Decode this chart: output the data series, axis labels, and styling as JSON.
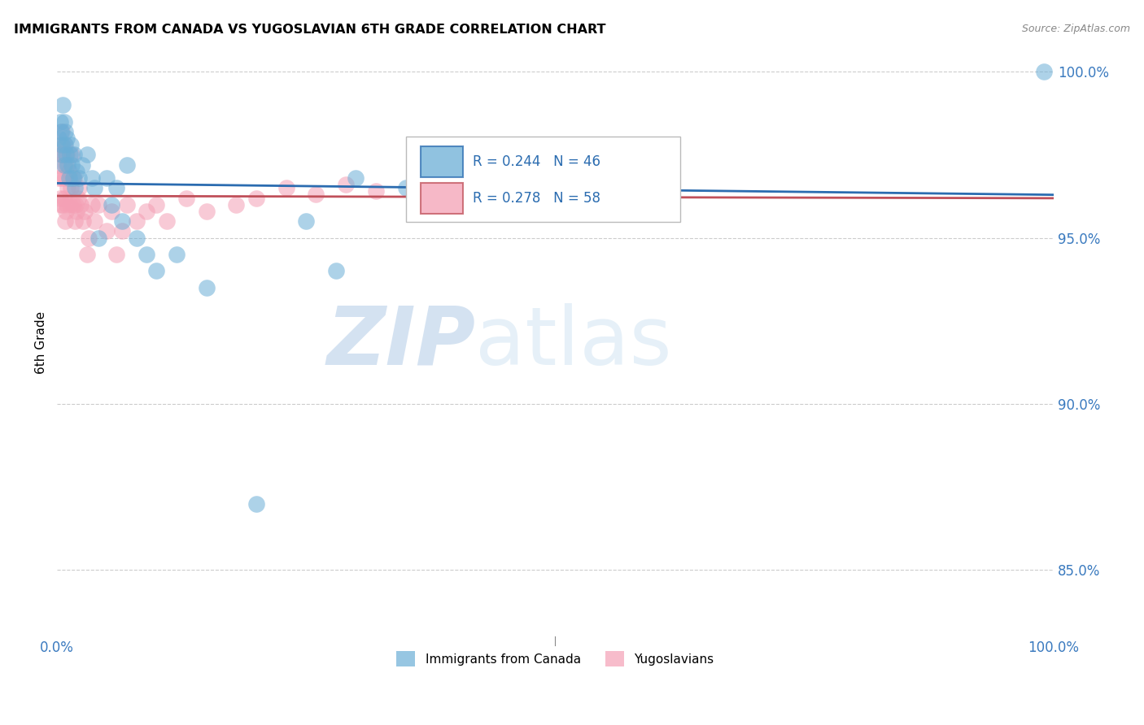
{
  "title": "IMMIGRANTS FROM CANADA VS YUGOSLAVIAN 6TH GRADE CORRELATION CHART",
  "source": "Source: ZipAtlas.com",
  "ylabel": "6th Grade",
  "ytick_labels": [
    "100.0%",
    "95.0%",
    "90.0%",
    "85.0%"
  ],
  "ytick_values": [
    1.0,
    0.95,
    0.9,
    0.85
  ],
  "legend_canada": "Immigrants from Canada",
  "legend_yugoslavians": "Yugoslavians",
  "legend_r_canada": "R = 0.244",
  "legend_n_canada": "N = 46",
  "legend_r_yugo": "R = 0.278",
  "legend_n_yugo": "N = 58",
  "canada_color": "#6baed6",
  "yugo_color": "#f4a0b5",
  "canada_line_color": "#2b6cb0",
  "yugo_line_color": "#c0505a",
  "watermark_zip": "ZIP",
  "watermark_atlas": "atlas",
  "canada_x": [
    0.002,
    0.003,
    0.004,
    0.005,
    0.005,
    0.006,
    0.007,
    0.007,
    0.008,
    0.008,
    0.009,
    0.01,
    0.011,
    0.012,
    0.013,
    0.014,
    0.015,
    0.016,
    0.017,
    0.018,
    0.02,
    0.022,
    0.025,
    0.03,
    0.035,
    0.038,
    0.042,
    0.05,
    0.055,
    0.06,
    0.065,
    0.07,
    0.08,
    0.09,
    0.1,
    0.12,
    0.15,
    0.2,
    0.25,
    0.28,
    0.3,
    0.35,
    0.38,
    0.42,
    0.5,
    0.99
  ],
  "canada_y": [
    0.98,
    0.985,
    0.982,
    0.978,
    0.975,
    0.99,
    0.972,
    0.985,
    0.982,
    0.978,
    0.975,
    0.98,
    0.972,
    0.968,
    0.975,
    0.978,
    0.972,
    0.968,
    0.975,
    0.965,
    0.97,
    0.968,
    0.972,
    0.975,
    0.968,
    0.965,
    0.95,
    0.968,
    0.96,
    0.965,
    0.955,
    0.972,
    0.95,
    0.945,
    0.94,
    0.945,
    0.935,
    0.87,
    0.955,
    0.94,
    0.968,
    0.965,
    0.968,
    0.965,
    0.97,
    1.0
  ],
  "yugo_x": [
    0.001,
    0.002,
    0.003,
    0.003,
    0.004,
    0.004,
    0.005,
    0.005,
    0.006,
    0.006,
    0.007,
    0.007,
    0.008,
    0.008,
    0.009,
    0.009,
    0.01,
    0.01,
    0.011,
    0.012,
    0.013,
    0.014,
    0.015,
    0.016,
    0.017,
    0.018,
    0.019,
    0.02,
    0.021,
    0.022,
    0.024,
    0.026,
    0.028,
    0.03,
    0.032,
    0.035,
    0.038,
    0.042,
    0.05,
    0.055,
    0.06,
    0.065,
    0.07,
    0.08,
    0.09,
    0.1,
    0.11,
    0.13,
    0.15,
    0.18,
    0.2,
    0.23,
    0.26,
    0.29,
    0.32,
    0.36,
    0.4,
    0.45
  ],
  "yugo_y": [
    0.972,
    0.968,
    0.978,
    0.962,
    0.975,
    0.96,
    0.982,
    0.968,
    0.975,
    0.96,
    0.978,
    0.962,
    0.968,
    0.955,
    0.972,
    0.958,
    0.975,
    0.96,
    0.965,
    0.97,
    0.96,
    0.965,
    0.975,
    0.96,
    0.968,
    0.955,
    0.96,
    0.958,
    0.962,
    0.965,
    0.96,
    0.955,
    0.958,
    0.945,
    0.95,
    0.96,
    0.955,
    0.96,
    0.952,
    0.958,
    0.945,
    0.952,
    0.96,
    0.955,
    0.958,
    0.96,
    0.955,
    0.962,
    0.958,
    0.96,
    0.962,
    0.965,
    0.963,
    0.966,
    0.964,
    0.966,
    0.965,
    0.968
  ],
  "xlim": [
    0.0,
    1.0
  ],
  "ylim": [
    0.83,
    1.007
  ],
  "xtick_positions": [
    0.0,
    0.2,
    0.4,
    0.6,
    0.8,
    1.0
  ],
  "xtick_labels": [
    "0.0%",
    "",
    "",
    "",
    "",
    "100.0%"
  ]
}
